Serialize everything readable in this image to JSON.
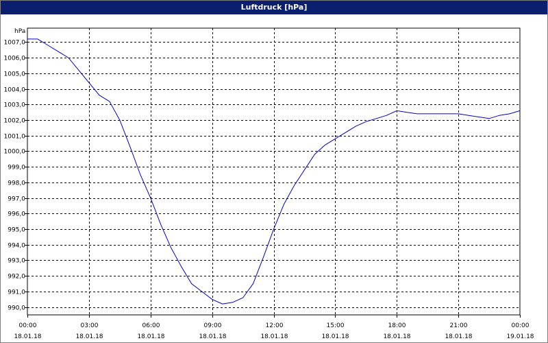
{
  "window": {
    "title": "Luftdruck [hPa]"
  },
  "chart_data": {
    "type": "line",
    "title": "Luftdruck [hPa]",
    "ylabel": "hPa",
    "ylim": [
      989.5,
      1007.9
    ],
    "yticks": [
      {
        "value": 990,
        "label": "990,0"
      },
      {
        "value": 991,
        "label": "991,0"
      },
      {
        "value": 992,
        "label": "992,0"
      },
      {
        "value": 993,
        "label": "993,0"
      },
      {
        "value": 994,
        "label": "994,0"
      },
      {
        "value": 995,
        "label": "995,0"
      },
      {
        "value": 996,
        "label": "996,0"
      },
      {
        "value": 997,
        "label": "997,0"
      },
      {
        "value": 998,
        "label": "998,0"
      },
      {
        "value": 999,
        "label": "999,0"
      },
      {
        "value": 1000,
        "label": "1000,0"
      },
      {
        "value": 1001,
        "label": "1001,0"
      },
      {
        "value": 1002,
        "label": "1002,0"
      },
      {
        "value": 1003,
        "label": "1003,0"
      },
      {
        "value": 1004,
        "label": "1004,0"
      },
      {
        "value": 1005,
        "label": "1005,0"
      },
      {
        "value": 1006,
        "label": "1006,0"
      },
      {
        "value": 1007,
        "label": "1007,0"
      }
    ],
    "xlim": [
      "18.01.18 00:00",
      "19.01.18 00:00"
    ],
    "xticks": [
      {
        "time": "00:00",
        "date": "18.01.18"
      },
      {
        "time": "03:00",
        "date": "18.01.18"
      },
      {
        "time": "06:00",
        "date": "18.01.18"
      },
      {
        "time": "09:00",
        "date": "18.01.18"
      },
      {
        "time": "12:00",
        "date": "18.01.18"
      },
      {
        "time": "15:00",
        "date": "18.01.18"
      },
      {
        "time": "18:00",
        "date": "18.01.18"
      },
      {
        "time": "21:00",
        "date": "18.01.18"
      },
      {
        "time": "00:00",
        "date": "19.01.18"
      }
    ],
    "grid": true,
    "line_color": "#0000cc",
    "series": [
      {
        "x": [
          "00:00",
          "00:30",
          "01:00",
          "01:30",
          "02:00",
          "02:30",
          "03:00",
          "03:30",
          "04:00",
          "04:30",
          "05:00",
          "05:30",
          "06:00",
          "06:30",
          "07:00",
          "07:30",
          "08:00",
          "08:30",
          "09:00",
          "09:30",
          "10:00",
          "10:30",
          "11:00",
          "11:30",
          "12:00",
          "12:30",
          "13:00",
          "13:30",
          "14:00",
          "14:30",
          "15:00",
          "15:30",
          "16:00",
          "16:30",
          "17:00",
          "17:30",
          "18:00",
          "18:30",
          "19:00",
          "19:30",
          "20:00",
          "20:30",
          "21:00",
          "21:30",
          "22:00",
          "22:30",
          "23:00",
          "23:30",
          "24:00"
        ],
        "y": [
          1007.2,
          1007.2,
          1006.8,
          1006.4,
          1006.0,
          1005.2,
          1004.4,
          1003.6,
          1003.2,
          1002.0,
          1000.3,
          998.5,
          997.0,
          995.3,
          993.8,
          992.6,
          991.5,
          991.0,
          990.5,
          990.2,
          990.3,
          990.6,
          991.5,
          993.2,
          995.0,
          996.6,
          997.8,
          998.8,
          999.8,
          1000.4,
          1000.8,
          1001.2,
          1001.6,
          1001.9,
          1002.1,
          1002.3,
          1002.6,
          1002.5,
          1002.4,
          1002.4,
          1002.4,
          1002.4,
          1002.4,
          1002.3,
          1002.2,
          1002.1,
          1002.3,
          1002.4,
          1002.6
        ]
      }
    ]
  }
}
